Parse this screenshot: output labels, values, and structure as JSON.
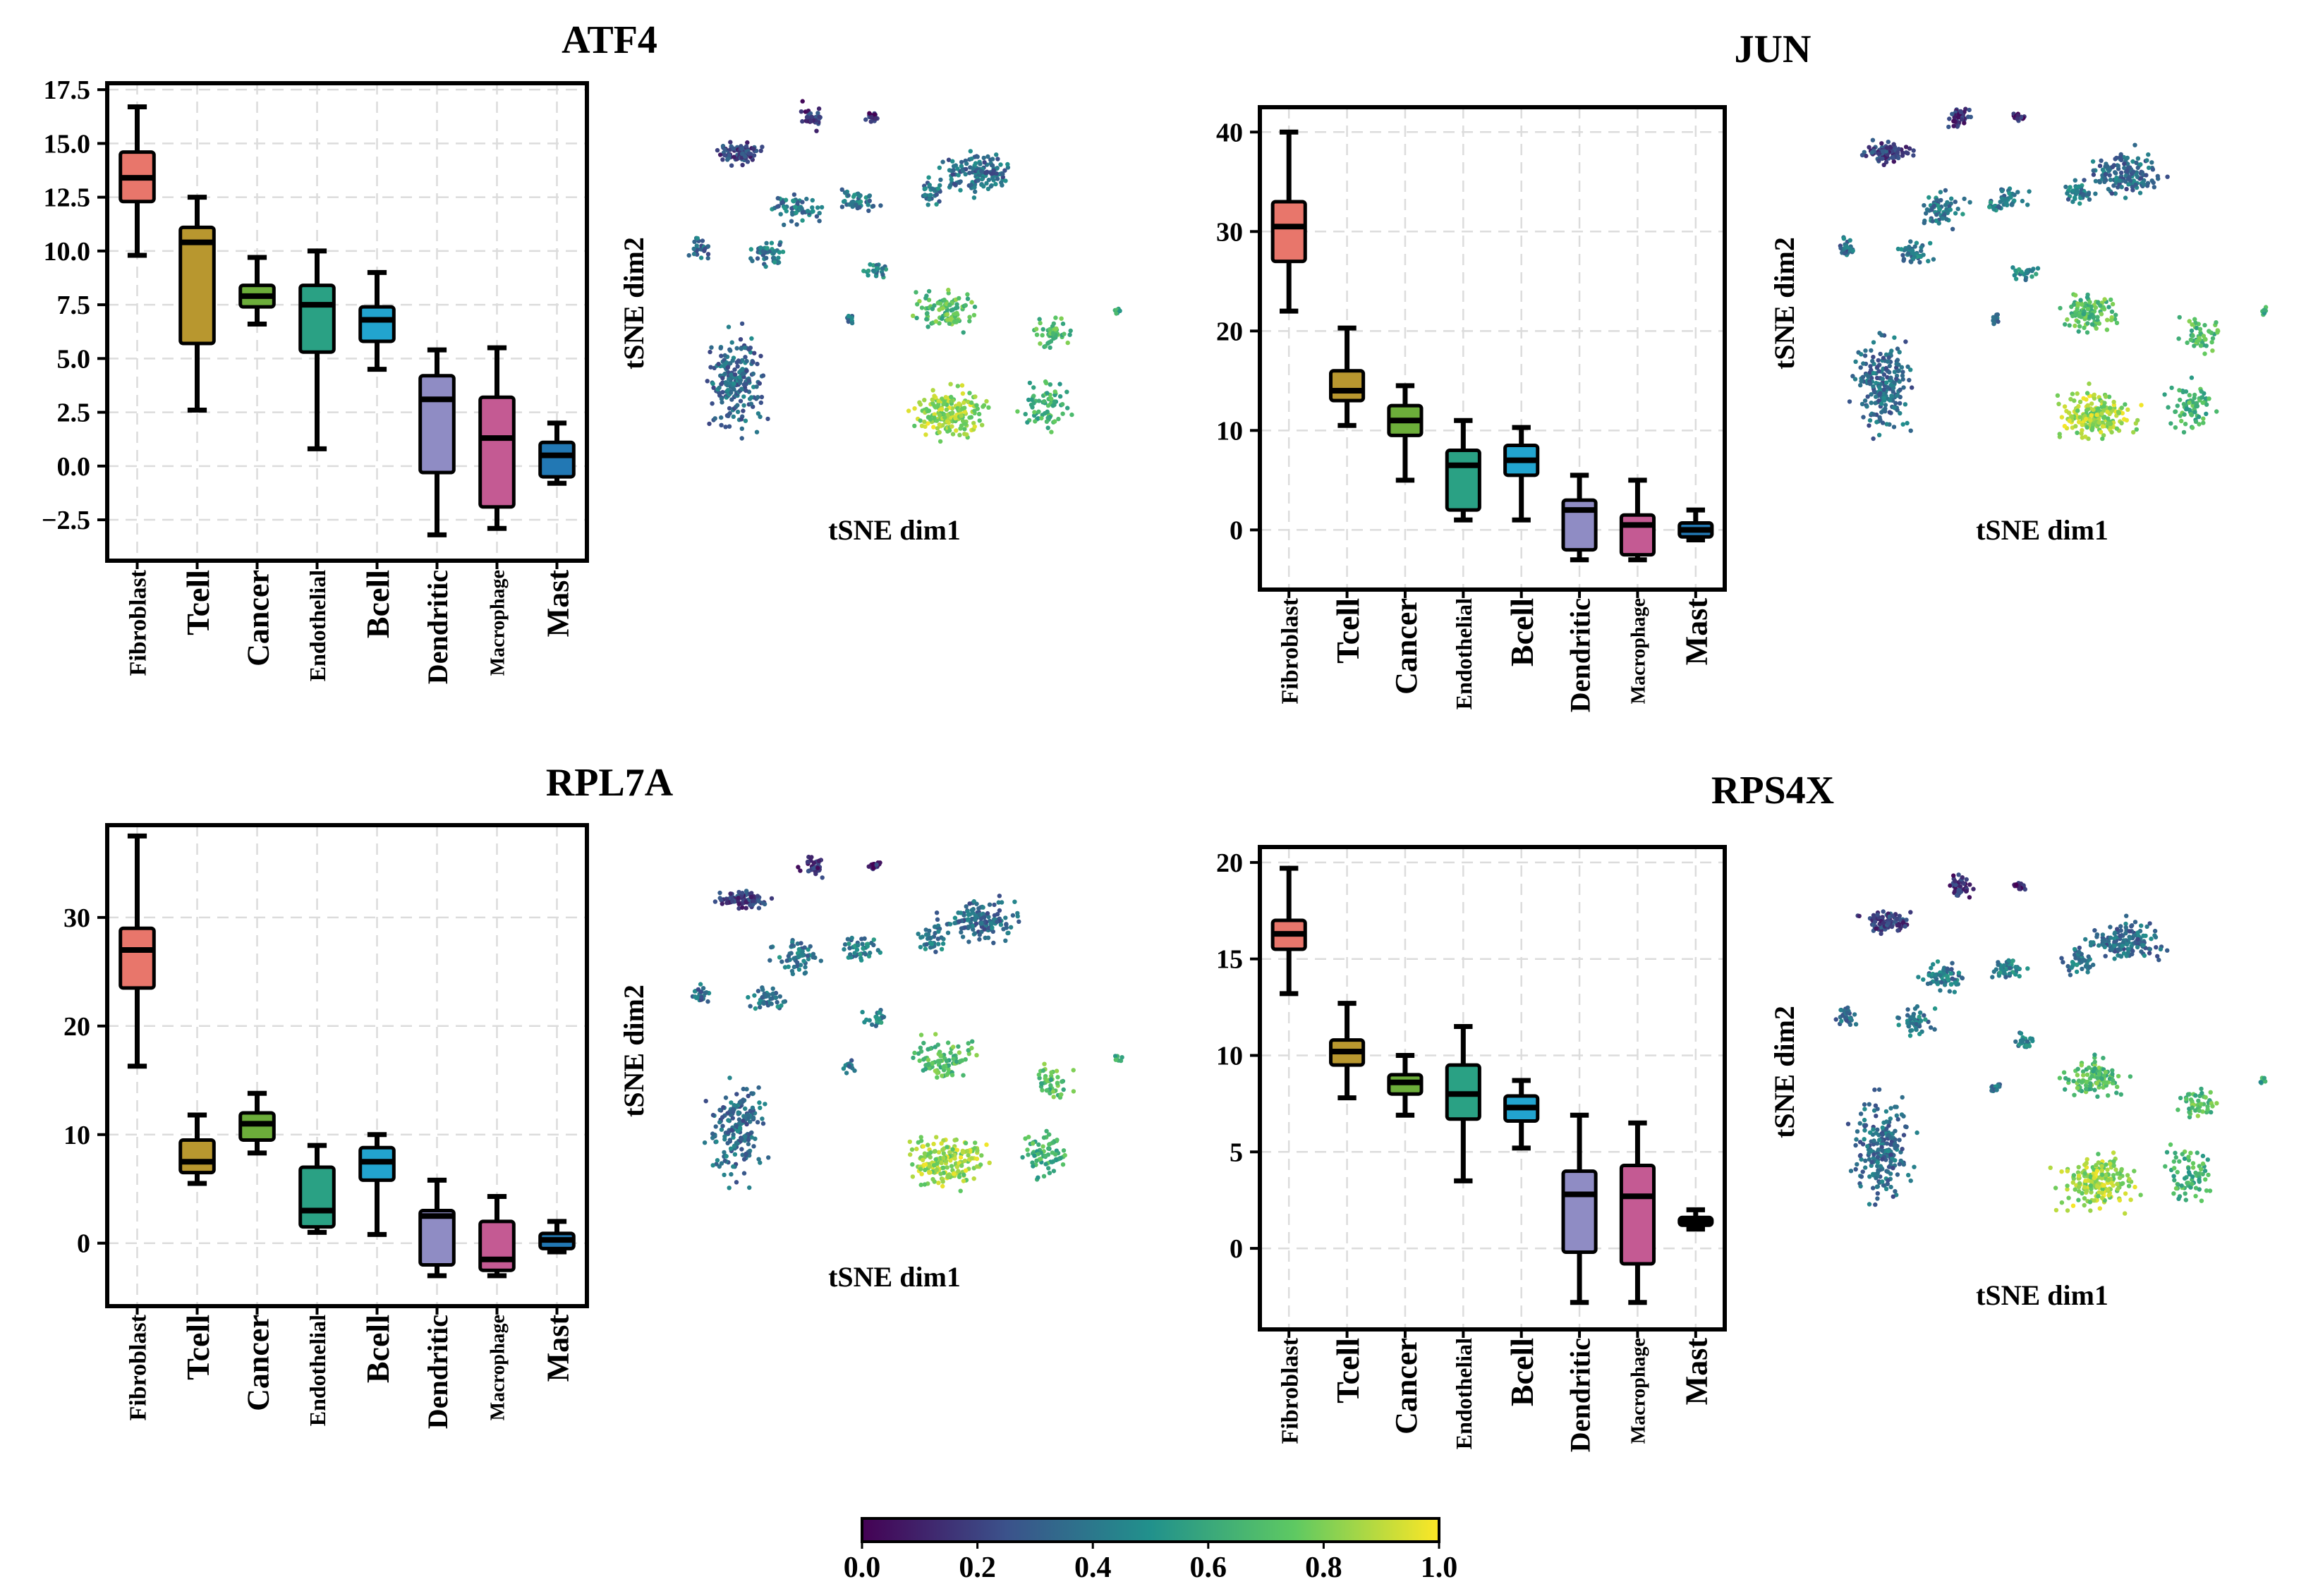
{
  "colors": {
    "Fibroblast": "#e8766b",
    "Tcell": "#b8972f",
    "Cancer": "#6cad3a",
    "Endothelial": "#2aa184",
    "Bcell": "#22a4cf",
    "Dendritic": "#8f8cc4",
    "Macrophage": "#c45a93",
    "Mast": "#2278b4",
    "viridis": [
      "#440154",
      "#3b528b",
      "#21918c",
      "#5ec962",
      "#fde725"
    ]
  },
  "chart_data": [
    {
      "type": "box",
      "title": "ATF4",
      "categories": [
        "Fibroblast",
        "Tcell",
        "Cancer",
        "Endothelial",
        "Bcell",
        "Dendritic",
        "Macrophage",
        "Mast"
      ],
      "boxes": [
        {
          "whisker_low": 9.8,
          "q1": 12.3,
          "median": 13.4,
          "q3": 14.6,
          "whisker_high": 16.7
        },
        {
          "whisker_low": 2.6,
          "q1": 5.7,
          "median": 10.4,
          "q3": 11.1,
          "whisker_high": 12.5
        },
        {
          "whisker_low": 6.6,
          "q1": 7.4,
          "median": 7.9,
          "q3": 8.4,
          "whisker_high": 9.7
        },
        {
          "whisker_low": 0.8,
          "q1": 5.3,
          "median": 7.5,
          "q3": 8.4,
          "whisker_high": 10.0
        },
        {
          "whisker_low": 4.5,
          "q1": 5.8,
          "median": 6.8,
          "q3": 7.4,
          "whisker_high": 9.0
        },
        {
          "whisker_low": -3.2,
          "q1": -0.3,
          "median": 3.1,
          "q3": 4.2,
          "whisker_high": 5.4
        },
        {
          "whisker_low": -2.9,
          "q1": -1.9,
          "median": 1.3,
          "q3": 3.2,
          "whisker_high": 5.5
        },
        {
          "whisker_low": -0.8,
          "q1": -0.5,
          "median": 0.5,
          "q3": 1.1,
          "whisker_high": 2.0
        }
      ],
      "yticks": [
        -2.5,
        0.0,
        2.5,
        5.0,
        7.5,
        10.0,
        12.5,
        15.0,
        17.5
      ],
      "ytick_labels": [
        "−2.5",
        "0.0",
        "2.5",
        "5.0",
        "7.5",
        "10.0",
        "12.5",
        "15.0",
        "17.5"
      ],
      "ylim": [
        -4.4,
        17.8
      ],
      "grid": true,
      "tsne": {
        "xlabel": "tSNE dim1",
        "ylabel": "tSNE dim2"
      }
    },
    {
      "type": "box",
      "title": "JUN",
      "categories": [
        "Fibroblast",
        "Tcell",
        "Cancer",
        "Endothelial",
        "Bcell",
        "Dendritic",
        "Macrophage",
        "Mast"
      ],
      "boxes": [
        {
          "whisker_low": 22.0,
          "q1": 27.0,
          "median": 30.5,
          "q3": 33.0,
          "whisker_high": 40.0
        },
        {
          "whisker_low": 10.5,
          "q1": 13.0,
          "median": 14.0,
          "q3": 16.0,
          "whisker_high": 20.3
        },
        {
          "whisker_low": 5.0,
          "q1": 9.5,
          "median": 11.0,
          "q3": 12.5,
          "whisker_high": 14.5
        },
        {
          "whisker_low": 1.0,
          "q1": 2.0,
          "median": 6.5,
          "q3": 8.0,
          "whisker_high": 11.0
        },
        {
          "whisker_low": 1.0,
          "q1": 5.5,
          "median": 7.0,
          "q3": 8.5,
          "whisker_high": 10.3
        },
        {
          "whisker_low": -3.0,
          "q1": -2.0,
          "median": 2.0,
          "q3": 3.0,
          "whisker_high": 5.5
        },
        {
          "whisker_low": -3.0,
          "q1": -2.5,
          "median": 0.5,
          "q3": 1.5,
          "whisker_high": 5.0
        },
        {
          "whisker_low": -1.0,
          "q1": -0.7,
          "median": 0.0,
          "q3": 0.7,
          "whisker_high": 2.0
        }
      ],
      "yticks": [
        0,
        10,
        20,
        30,
        40
      ],
      "ytick_labels": [
        "0",
        "10",
        "20",
        "30",
        "40"
      ],
      "ylim": [
        -6,
        42.5
      ],
      "grid": true,
      "tsne": {
        "xlabel": "tSNE dim1",
        "ylabel": "tSNE dim2"
      }
    },
    {
      "type": "box",
      "title": "RPL7A",
      "categories": [
        "Fibroblast",
        "Tcell",
        "Cancer",
        "Endothelial",
        "Bcell",
        "Dendritic",
        "Macrophage",
        "Mast"
      ],
      "boxes": [
        {
          "whisker_low": 16.3,
          "q1": 23.5,
          "median": 27.0,
          "q3": 29.0,
          "whisker_high": 37.5
        },
        {
          "whisker_low": 5.5,
          "q1": 6.5,
          "median": 7.5,
          "q3": 9.5,
          "whisker_high": 11.8
        },
        {
          "whisker_low": 8.3,
          "q1": 9.5,
          "median": 11.0,
          "q3": 12.0,
          "whisker_high": 13.8
        },
        {
          "whisker_low": 1.0,
          "q1": 1.5,
          "median": 3.0,
          "q3": 7.0,
          "whisker_high": 9.0
        },
        {
          "whisker_low": 0.8,
          "q1": 5.8,
          "median": 7.5,
          "q3": 8.8,
          "whisker_high": 10.0
        },
        {
          "whisker_low": -3.0,
          "q1": -2.0,
          "median": 2.5,
          "q3": 3.0,
          "whisker_high": 5.8
        },
        {
          "whisker_low": -3.0,
          "q1": -2.5,
          "median": -1.5,
          "q3": 2.0,
          "whisker_high": 4.3
        },
        {
          "whisker_low": -0.8,
          "q1": -0.5,
          "median": 0.3,
          "q3": 0.9,
          "whisker_high": 2.0
        }
      ],
      "yticks": [
        0,
        10,
        20,
        30
      ],
      "ytick_labels": [
        "0",
        "10",
        "20",
        "30"
      ],
      "ylim": [
        -5.8,
        38.5
      ],
      "grid": true,
      "tsne": {
        "xlabel": "tSNE dim1",
        "ylabel": "tSNE dim2"
      }
    },
    {
      "type": "box",
      "title": "RPS4X",
      "categories": [
        "Fibroblast",
        "Tcell",
        "Cancer",
        "Endothelial",
        "Bcell",
        "Dendritic",
        "Macrophage",
        "Mast"
      ],
      "boxes": [
        {
          "whisker_low": 13.2,
          "q1": 15.5,
          "median": 16.3,
          "q3": 17.0,
          "whisker_high": 19.7
        },
        {
          "whisker_low": 7.8,
          "q1": 9.5,
          "median": 10.2,
          "q3": 10.8,
          "whisker_high": 12.7
        },
        {
          "whisker_low": 6.9,
          "q1": 8.0,
          "median": 8.6,
          "q3": 9.0,
          "whisker_high": 10.0
        },
        {
          "whisker_low": 3.5,
          "q1": 6.7,
          "median": 8.0,
          "q3": 9.5,
          "whisker_high": 11.5
        },
        {
          "whisker_low": 5.2,
          "q1": 6.6,
          "median": 7.3,
          "q3": 7.9,
          "whisker_high": 8.7
        },
        {
          "whisker_low": -2.8,
          "q1": -0.2,
          "median": 2.8,
          "q3": 4.0,
          "whisker_high": 6.9
        },
        {
          "whisker_low": -2.8,
          "q1": -0.8,
          "median": 2.7,
          "q3": 4.3,
          "whisker_high": 6.5
        },
        {
          "whisker_low": 1.0,
          "q1": 1.2,
          "median": 1.4,
          "q3": 1.6,
          "whisker_high": 2.0
        }
      ],
      "yticks": [
        0,
        5,
        10,
        15,
        20
      ],
      "ytick_labels": [
        "0",
        "5",
        "10",
        "15",
        "20"
      ],
      "ylim": [
        -4.2,
        20.8
      ],
      "grid": true,
      "tsne": {
        "xlabel": "tSNE dim1",
        "ylabel": "tSNE dim2"
      }
    }
  ],
  "colorbar": {
    "range": [
      0.0,
      1.0
    ],
    "ticks": [
      "0.0",
      "0.2",
      "0.4",
      "0.6",
      "0.8",
      "1.0"
    ]
  }
}
